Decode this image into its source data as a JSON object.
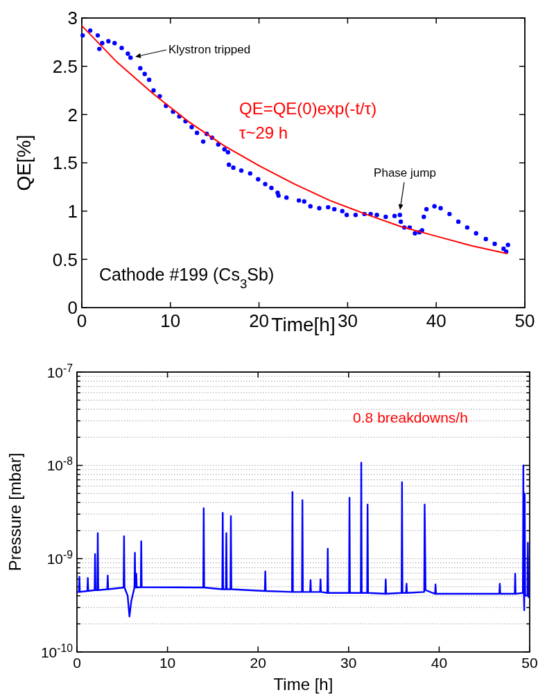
{
  "chart_data": [
    {
      "type": "scatter",
      "xlabel": "Time[h]",
      "ylabel": "QE[%]",
      "xlim": [
        0,
        50
      ],
      "ylim": [
        0,
        3
      ],
      "xticks": [
        0,
        10,
        20,
        30,
        40,
        50
      ],
      "yticks": [
        0,
        0.5,
        1,
        1.5,
        2,
        2.5,
        3
      ],
      "grid": false,
      "annotations": [
        "Klystron tripped",
        "Phase jump",
        "QE=QE(0)exp(-t/τ)",
        "τ~29 h",
        "Cathode #199 (Cs$_{3}$Sb)"
      ],
      "series": [
        {
          "marker": "circle",
          "color": "#0000ff",
          "x": [
            0.1,
            0.95,
            1.8,
            1.98,
            2.3,
            3.0,
            3.7,
            4.5,
            5.2,
            5.5,
            6.6,
            7.1,
            7.6,
            8.1,
            8.8,
            9.5,
            10.3,
            11.0,
            11.7,
            12.4,
            13.0,
            13.7,
            14.1,
            14.7,
            15.4,
            16.1,
            16.5,
            16.6,
            17.1,
            18.0,
            19.0,
            19.9,
            20.7,
            21.4,
            22.1,
            22.2,
            23.1,
            24.5,
            25.1,
            25.8,
            26.8,
            27.8,
            28.5,
            29.4,
            29.9,
            30.9,
            31.9,
            32.6,
            33.3,
            34.3,
            35.3,
            35.9,
            36.0,
            36.4,
            37.0,
            37.6,
            38.1,
            38.4,
            38.6,
            38.9,
            39.8,
            40.5,
            41.5,
            42.5,
            43.5,
            44.5,
            45.6,
            46.6,
            47.6,
            47.9,
            48.1
          ],
          "values": [
            2.82,
            2.87,
            2.82,
            2.68,
            2.74,
            2.76,
            2.74,
            2.69,
            2.63,
            2.59,
            2.48,
            2.42,
            2.36,
            2.25,
            2.19,
            2.09,
            2.03,
            1.98,
            1.93,
            1.87,
            1.81,
            1.72,
            1.8,
            1.76,
            1.69,
            1.64,
            1.61,
            1.48,
            1.45,
            1.42,
            1.39,
            1.33,
            1.28,
            1.24,
            1.19,
            1.16,
            1.14,
            1.11,
            1.1,
            1.05,
            1.03,
            1.04,
            1.02,
            1.0,
            0.96,
            0.96,
            0.97,
            0.97,
            0.96,
            0.94,
            0.95,
            0.96,
            0.89,
            0.83,
            0.83,
            0.77,
            0.78,
            0.8,
            0.94,
            1.02,
            1.05,
            1.03,
            0.97,
            0.89,
            0.83,
            0.77,
            0.71,
            0.66,
            0.61,
            0.58,
            0.65
          ]
        },
        {
          "type": "line",
          "color": "#ff0000",
          "line_style": "solid",
          "marker": "none",
          "x": [
            0,
            4,
            8,
            12,
            16,
            20,
            24,
            28,
            32,
            36,
            40,
            44,
            48
          ],
          "values": [
            2.92,
            2.54,
            2.22,
            1.93,
            1.68,
            1.47,
            1.28,
            1.11,
            0.97,
            0.84,
            0.74,
            0.64,
            0.56
          ]
        }
      ]
    },
    {
      "type": "line",
      "xlabel": "Time [h]",
      "ylabel": "Pressure [mbar]",
      "log": "y",
      "xlim": [
        0,
        50
      ],
      "ylim": [
        1e-10,
        1e-07
      ],
      "xticks": [
        0,
        10,
        20,
        30,
        40,
        50
      ],
      "yticks": [
        {
          "value": 1e-10,
          "label": "10$^{-10}$"
        },
        {
          "value": 2e-10,
          "label": null
        },
        {
          "value": 3e-10,
          "label": null
        },
        {
          "value": 4e-10,
          "label": null
        },
        {
          "value": 5e-10,
          "label": null
        },
        {
          "value": 6e-10,
          "label": null
        },
        {
          "value": 7e-10,
          "label": null
        },
        {
          "value": 8e-10,
          "label": null
        },
        {
          "value": 9e-10,
          "label": null
        },
        {
          "value": 1e-09,
          "label": "10$^{-9}$"
        },
        {
          "value": 2e-09,
          "label": null
        },
        {
          "value": 3e-09,
          "label": null
        },
        {
          "value": 4e-09,
          "label": null
        },
        {
          "value": 5e-09,
          "label": null
        },
        {
          "value": 6e-09,
          "label": null
        },
        {
          "value": 7e-09,
          "label": null
        },
        {
          "value": 8e-09,
          "label": null
        },
        {
          "value": 9e-09,
          "label": null
        },
        {
          "value": 1e-08,
          "label": "10$^{-8}$"
        },
        {
          "value": 2e-08,
          "label": null
        },
        {
          "value": 3e-08,
          "label": null
        },
        {
          "value": 4e-08,
          "label": null
        },
        {
          "value": 5e-08,
          "label": null
        },
        {
          "value": 6e-08,
          "label": null
        },
        {
          "value": 7e-08,
          "label": null
        },
        {
          "value": 8e-08,
          "label": null
        },
        {
          "value": 9e-08,
          "label": null
        },
        {
          "value": 1e-07,
          "label": "10$^{-7}$"
        }
      ],
      "grid": "y",
      "annotations": [
        "0.8 breakdowns/h"
      ],
      "series": [
        {
          "color": "#0000ff",
          "line_style": "solid",
          "marker": "none",
          "x": [
            0,
            0.22,
            0.27,
            0.32,
            1.15,
            1.2,
            1.25,
            1.95,
            2.0,
            2.05,
            2.25,
            2.3,
            2.35,
            3.35,
            3.4,
            3.45,
            5.15,
            5.2,
            5.25,
            5.6,
            5.8,
            6.0,
            6.35,
            6.4,
            6.45,
            6.5,
            6.55,
            6.6,
            7.05,
            7.1,
            7.15,
            13.95,
            14.0,
            14.05,
            16.05,
            16.1,
            16.15,
            16.45,
            16.5,
            16.55,
            16.95,
            17.0,
            17.05,
            20.75,
            20.8,
            20.85,
            23.75,
            23.8,
            23.85,
            24.85,
            24.9,
            24.95,
            25.75,
            25.8,
            25.85,
            26.85,
            26.9,
            26.95,
            27.65,
            27.7,
            27.75,
            30.05,
            30.1,
            30.15,
            31.35,
            31.4,
            31.45,
            32.05,
            32.1,
            32.15,
            34.05,
            34.1,
            34.15,
            35.85,
            35.9,
            35.95,
            36.35,
            36.4,
            36.45,
            38.35,
            38.4,
            38.5,
            39.55,
            39.6,
            39.65,
            46.65,
            46.7,
            46.75,
            48.35,
            48.4,
            48.45,
            49.25,
            49.3,
            49.35,
            49.4,
            49.45,
            49.5,
            49.55,
            49.75,
            49.8,
            49.85,
            49.9
          ],
          "values": [
            4.4e-10,
            4.4e-10,
            6.4e-10,
            4.4e-10,
            4.5e-10,
            6.2e-10,
            4.5e-10,
            4.6e-10,
            1.12e-09,
            4.6e-10,
            4.6e-10,
            1.88e-09,
            4.6e-10,
            4.7e-10,
            6.6e-10,
            4.7e-10,
            4.9e-10,
            1.74e-09,
            4.9e-10,
            4e-10,
            2.4e-10,
            3.5e-10,
            4.9e-10,
            1.16e-09,
            4.9e-10,
            4.9e-10,
            6.9e-10,
            4.9e-10,
            4.95e-10,
            1.54e-09,
            4.95e-10,
            4.9e-10,
            3.47e-09,
            4.9e-10,
            4.7e-10,
            3.1e-09,
            4.7e-10,
            4.7e-10,
            1.88e-09,
            4.7e-10,
            4.7e-10,
            2.86e-09,
            4.7e-10,
            4.5e-10,
            7.3e-10,
            4.5e-10,
            4.4e-10,
            5.17e-09,
            4.4e-10,
            4.4e-10,
            4.24e-09,
            4.4e-10,
            4.4e-10,
            5.9e-10,
            4.4e-10,
            4.4e-10,
            6e-10,
            4.4e-10,
            4.3e-10,
            1.28e-09,
            4.3e-10,
            4.3e-10,
            4.5e-09,
            4.3e-10,
            4.3e-10,
            1.07e-08,
            4.3e-10,
            4.3e-10,
            3.8e-09,
            4.3e-10,
            4.2e-10,
            6e-10,
            4.2e-10,
            4.3e-10,
            6.6e-09,
            4.3e-10,
            4.3e-10,
            5.4e-10,
            4.3e-10,
            4.4e-10,
            3.8e-09,
            4.6e-10,
            4.2e-10,
            5.3e-10,
            4.2e-10,
            4.2e-10,
            5.4e-10,
            4.2e-10,
            4.2e-10,
            6.9e-10,
            4.2e-10,
            4.3e-10,
            1e-08,
            4.5e-10,
            2.8e-10,
            5e-09,
            4.2e-10,
            4e-10,
            4e-10,
            1.48e-09,
            4e-10,
            3.8e-10
          ]
        }
      ]
    }
  ]
}
